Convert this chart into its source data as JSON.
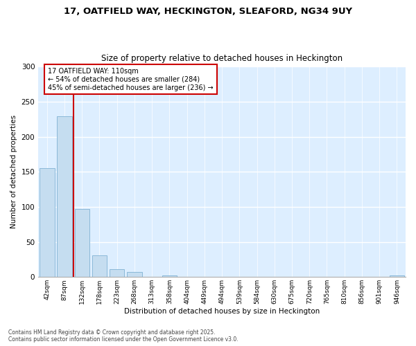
{
  "title_line1": "17, OATFIELD WAY, HECKINGTON, SLEAFORD, NG34 9UY",
  "title_line2": "Size of property relative to detached houses in Heckington",
  "xlabel": "Distribution of detached houses by size in Heckington",
  "ylabel": "Number of detached properties",
  "categories": [
    "42sqm",
    "87sqm",
    "132sqm",
    "178sqm",
    "223sqm",
    "268sqm",
    "313sqm",
    "358sqm",
    "404sqm",
    "449sqm",
    "494sqm",
    "539sqm",
    "584sqm",
    "630sqm",
    "675sqm",
    "720sqm",
    "765sqm",
    "810sqm",
    "856sqm",
    "901sqm",
    "946sqm"
  ],
  "values": [
    155,
    229,
    97,
    31,
    11,
    7,
    0,
    2,
    0,
    0,
    0,
    0,
    0,
    0,
    0,
    0,
    0,
    0,
    0,
    0,
    2
  ],
  "bar_color": "#c5ddf0",
  "bar_edge_color": "#8ab8d8",
  "vline_x": 1.5,
  "vline_color": "#cc0000",
  "annotation_text": "17 OATFIELD WAY: 110sqm\n← 54% of detached houses are smaller (284)\n45% of semi-detached houses are larger (236) →",
  "ylim": [
    0,
    300
  ],
  "yticks": [
    0,
    50,
    100,
    150,
    200,
    250,
    300
  ],
  "plot_bg_color": "#ddeeff",
  "fig_bg_color": "#ffffff",
  "grid_color": "#ffffff",
  "footer_line1": "Contains HM Land Registry data © Crown copyright and database right 2025.",
  "footer_line2": "Contains public sector information licensed under the Open Government Licence v3.0."
}
